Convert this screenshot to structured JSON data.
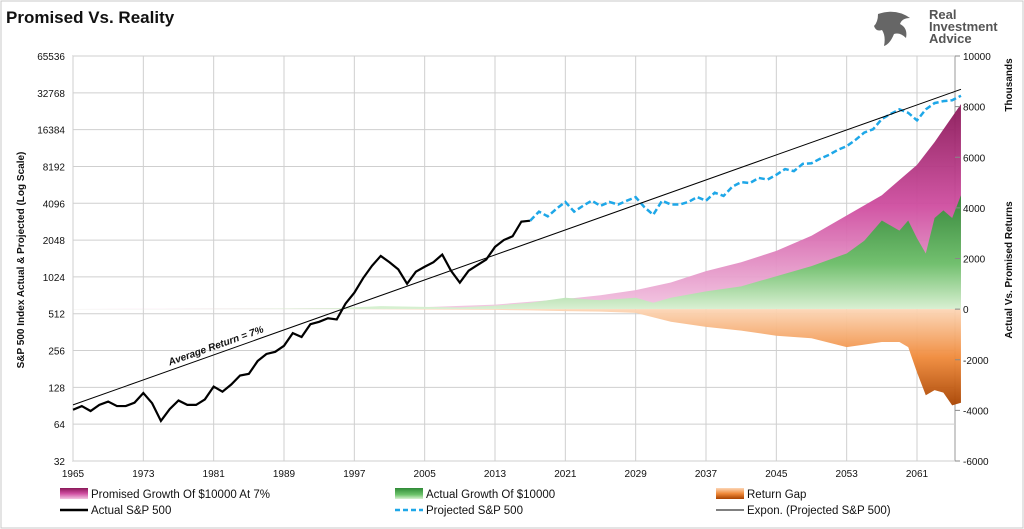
{
  "chart_data": {
    "type": "line",
    "title": "Promised Vs. Reality",
    "logo": "Real Investment Advice",
    "ylabel_left": "S&P 500 Index Actual & Projected (Log Scale)",
    "ylabel_right": "Actual Vs. Promised Returns",
    "ylabel_right_units": "Thousands",
    "annotation": "Average Return = 7%",
    "x_ticks": [
      "1965",
      "1973",
      "1981",
      "1989",
      "1997",
      "2005",
      "2013",
      "2021",
      "2029",
      "2037",
      "2045",
      "2053",
      "2061"
    ],
    "y_left_ticks": [
      "32",
      "64",
      "128",
      "256",
      "512",
      "1024",
      "2048",
      "4096",
      "8192",
      "16384",
      "32768",
      "65536"
    ],
    "y_left_scale": "log2",
    "y_left_range": [
      32,
      65536
    ],
    "y_right_ticks": [
      "-6000",
      "-4000",
      "-2000",
      "0",
      "2000",
      "4000",
      "6000",
      "8000",
      "10000"
    ],
    "y_right_range": [
      -6000,
      10000
    ],
    "x_range": [
      1965,
      2065
    ],
    "grid": true,
    "legend_position": "bottom",
    "colors": {
      "actual": "#000000",
      "projected": "#1ea7e8",
      "trend": "#000000",
      "promised": "#a3246f",
      "actual_growth": "#3f9e46",
      "gap": "#e57a22"
    },
    "series": [
      {
        "name": "Actual S&P 500",
        "axis": "left",
        "style": "solid",
        "x": [
          1965,
          1966,
          1967,
          1968,
          1969,
          1970,
          1971,
          1972,
          1973,
          1974,
          1975,
          1976,
          1977,
          1978,
          1979,
          1980,
          1981,
          1982,
          1983,
          1984,
          1985,
          1986,
          1987,
          1988,
          1989,
          1990,
          1991,
          1992,
          1993,
          1994,
          1995,
          1996,
          1997,
          1998,
          1999,
          2000,
          2001,
          2002,
          2003,
          2004,
          2005,
          2006,
          2007,
          2008,
          2009,
          2010,
          2011,
          2012,
          2013,
          2014,
          2015,
          2016,
          2017
        ],
        "y": [
          84,
          90,
          82,
          92,
          98,
          90,
          90,
          96,
          115,
          95,
          68,
          85,
          100,
          92,
          92,
          102,
          130,
          118,
          135,
          160,
          165,
          210,
          240,
          250,
          280,
          355,
          330,
          420,
          440,
          470,
          460,
          620,
          760,
          1000,
          1260,
          1520,
          1350,
          1180,
          900,
          1130,
          1240,
          1350,
          1560,
          1150,
          920,
          1150,
          1280,
          1420,
          1800,
          2050,
          2200,
          2900,
          2950
        ]
      },
      {
        "name": "Projected S&P 500",
        "axis": "left",
        "style": "dashed",
        "x": [
          2017,
          2018,
          2019,
          2020,
          2021,
          2022,
          2023,
          2024,
          2025,
          2026,
          2027,
          2028,
          2029,
          2030,
          2031,
          2032,
          2033,
          2034,
          2035,
          2036,
          2037,
          2038,
          2039,
          2040,
          2041,
          2042,
          2043,
          2044,
          2045,
          2046,
          2047,
          2048,
          2049,
          2050,
          2051,
          2052,
          2053,
          2054,
          2055,
          2056,
          2057,
          2058,
          2059,
          2060,
          2061,
          2062,
          2063,
          2064,
          2065,
          2066
        ],
        "y": [
          2950,
          3500,
          3200,
          3700,
          4200,
          3500,
          3900,
          4300,
          3900,
          4200,
          4000,
          4300,
          4600,
          3800,
          3300,
          4300,
          4000,
          4000,
          4200,
          4600,
          4300,
          5000,
          4700,
          5600,
          6100,
          6000,
          6600,
          6400,
          7000,
          7800,
          7500,
          8600,
          8700,
          9500,
          10200,
          11200,
          12000,
          13500,
          15500,
          16500,
          20000,
          22000,
          24000,
          22500,
          19500,
          24000,
          27000,
          28000,
          28500,
          31000
        ]
      },
      {
        "name": "Expon. (Projected S&P 500)",
        "axis": "left",
        "style": "thin",
        "x": [
          1965,
          2066
        ],
        "y": [
          92,
          35000
        ]
      },
      {
        "name": "Promised Growth Of $10000 At 7%",
        "axis": "right",
        "style": "area",
        "x": [
          1965,
          1975,
          1985,
          1995,
          2005,
          2013,
          2021,
          2025,
          2029,
          2033,
          2037,
          2041,
          2045,
          2049,
          2053,
          2057,
          2059,
          2061,
          2063,
          2064,
          2065,
          2066
        ],
        "y": [
          5,
          10,
          20,
          40,
          80,
          180,
          400,
          550,
          750,
          1050,
          1500,
          1850,
          2300,
          2900,
          3700,
          4500,
          5100,
          5700,
          6600,
          7100,
          7600,
          8100
        ]
      },
      {
        "name": "Actual Growth Of $10000",
        "axis": "right",
        "style": "area",
        "x": [
          1965,
          1975,
          1985,
          1995,
          2000,
          2005,
          2009,
          2013,
          2017,
          2021,
          2025,
          2029,
          2031,
          2033,
          2037,
          2041,
          2045,
          2049,
          2053,
          2055,
          2057,
          2059,
          2060,
          2061,
          2062,
          2063,
          2064,
          2065,
          2066
        ],
        "y": [
          5,
          5,
          15,
          40,
          120,
          90,
          70,
          140,
          250,
          450,
          350,
          450,
          250,
          450,
          700,
          900,
          1300,
          1700,
          2200,
          2700,
          3500,
          3100,
          3500,
          2800,
          2200,
          3600,
          3900,
          3600,
          4500
        ]
      },
      {
        "name": "Return Gap",
        "axis": "right",
        "style": "area",
        "x": [
          1965,
          1995,
          2005,
          2013,
          2017,
          2021,
          2025,
          2029,
          2033,
          2037,
          2041,
          2045,
          2049,
          2053,
          2055,
          2057,
          2059,
          2060,
          2061,
          2062,
          2063,
          2064,
          2065,
          2066
        ],
        "y": [
          0,
          0,
          -20,
          -30,
          -50,
          -80,
          -100,
          -150,
          -500,
          -700,
          -850,
          -1050,
          -1150,
          -1500,
          -1400,
          -1300,
          -1300,
          -1500,
          -2500,
          -3400,
          -3200,
          -3300,
          -3800,
          -3700
        ]
      }
    ],
    "legend": [
      {
        "label": "Promised Growth Of $10000 At 7%",
        "swatch": "promised"
      },
      {
        "label": "Actual Growth Of $10000",
        "swatch": "actual_growth"
      },
      {
        "label": "Return Gap",
        "swatch": "gap"
      },
      {
        "label": "Actual S&P 500",
        "swatch": "actual"
      },
      {
        "label": "Projected S&P 500",
        "swatch": "projected"
      },
      {
        "label": "Expon. (Projected S&P 500)",
        "swatch": "trend"
      }
    ]
  }
}
